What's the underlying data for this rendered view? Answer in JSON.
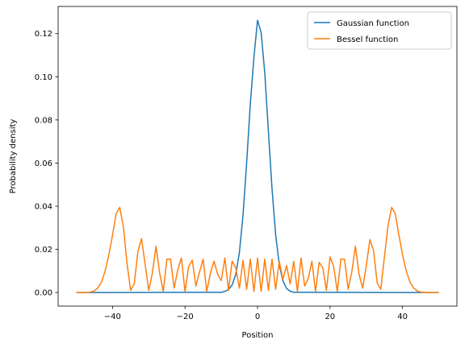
{
  "chart_data": {
    "type": "line",
    "xlabel": "Position",
    "ylabel": "Probability density",
    "xlim": [
      -55,
      55
    ],
    "ylim": [
      -0.0063,
      0.1326
    ],
    "xticks": [
      -40,
      -20,
      0,
      20,
      40
    ],
    "xtick_labels": [
      "−40",
      "−20",
      "0",
      "20",
      "40"
    ],
    "yticks": [
      0.0,
      0.02,
      0.04,
      0.06,
      0.08,
      0.1,
      0.12
    ],
    "ytick_labels": [
      "0.00",
      "0.02",
      "0.04",
      "0.06",
      "0.08",
      "0.10",
      "0.12"
    ],
    "grid": false,
    "legend_position": "upper right",
    "series": [
      {
        "name": "Gaussian function",
        "color": "#1f77b4",
        "x": [
          -50,
          -10,
          -9,
          -8,
          -7,
          -6,
          -5,
          -4,
          -3,
          -2,
          -1,
          0,
          1,
          2,
          3,
          4,
          5,
          6,
          7,
          8,
          9,
          10,
          50
        ],
        "y": [
          0,
          0.0001,
          0.0005,
          0.0014,
          0.0035,
          0.0084,
          0.0186,
          0.0359,
          0.0601,
          0.0872,
          0.1089,
          0.1262,
          0.1205,
          0.1018,
          0.0746,
          0.0481,
          0.0268,
          0.0129,
          0.0054,
          0.0019,
          0.0006,
          0.0001,
          0
        ]
      },
      {
        "name": "Bessel function",
        "color": "#ff7f0e",
        "x": [
          -50,
          -47,
          -46,
          -45,
          -44,
          -43,
          -42,
          -41,
          -40,
          -39,
          -38,
          -37,
          -36,
          -35,
          -34,
          -33,
          -32,
          -31,
          -30,
          -29,
          -28,
          -27,
          -26,
          -25,
          -24,
          -23,
          -22,
          -21,
          -20,
          -19,
          -18,
          -17,
          -16,
          -15,
          -14,
          -13,
          -12,
          -11,
          -10,
          -9,
          -8,
          -7,
          -6,
          -5,
          -4,
          -3,
          -2,
          -1,
          0,
          1,
          2,
          3,
          4,
          5,
          6,
          7,
          8,
          9,
          10,
          11,
          12,
          13,
          14,
          15,
          16,
          17,
          18,
          19,
          20,
          21,
          22,
          23,
          24,
          25,
          26,
          27,
          28,
          29,
          30,
          31,
          32,
          33,
          34,
          35,
          36,
          37,
          38,
          39,
          40,
          41,
          42,
          43,
          44,
          45,
          46,
          47,
          50
        ],
        "y": [
          0,
          0,
          0.0002,
          0.0008,
          0.0022,
          0.005,
          0.0102,
          0.0175,
          0.0265,
          0.0365,
          0.0395,
          0.0305,
          0.0135,
          0.001,
          0.004,
          0.019,
          0.025,
          0.013,
          0.001,
          0.009,
          0.0215,
          0.009,
          0.0005,
          0.0155,
          0.0155,
          0.002,
          0.0105,
          0.016,
          0.0005,
          0.012,
          0.015,
          0.003,
          0.0095,
          0.0155,
          0.0005,
          0.009,
          0.0145,
          0.0085,
          0.0055,
          0.016,
          0.001,
          0.0145,
          0.0115,
          0.002,
          0.015,
          0.0015,
          0.0155,
          0.0005,
          0.016,
          0.0005,
          0.0155,
          0.001,
          0.0155,
          0.0015,
          0.0145,
          0.006,
          0.0125,
          0.004,
          0.0145,
          0.0005,
          0.016,
          0.003,
          0.0065,
          0.0145,
          0.0005,
          0.014,
          0.0115,
          0.001,
          0.0165,
          0.012,
          0.0005,
          0.0155,
          0.0155,
          0.0015,
          0.0095,
          0.0215,
          0.0085,
          0.002,
          0.0125,
          0.0245,
          0.0195,
          0.0045,
          0.0015,
          0.0165,
          0.031,
          0.0395,
          0.0365,
          0.0265,
          0.0175,
          0.0102,
          0.005,
          0.0022,
          0.0008,
          0.0002,
          0,
          0,
          0
        ]
      }
    ]
  }
}
